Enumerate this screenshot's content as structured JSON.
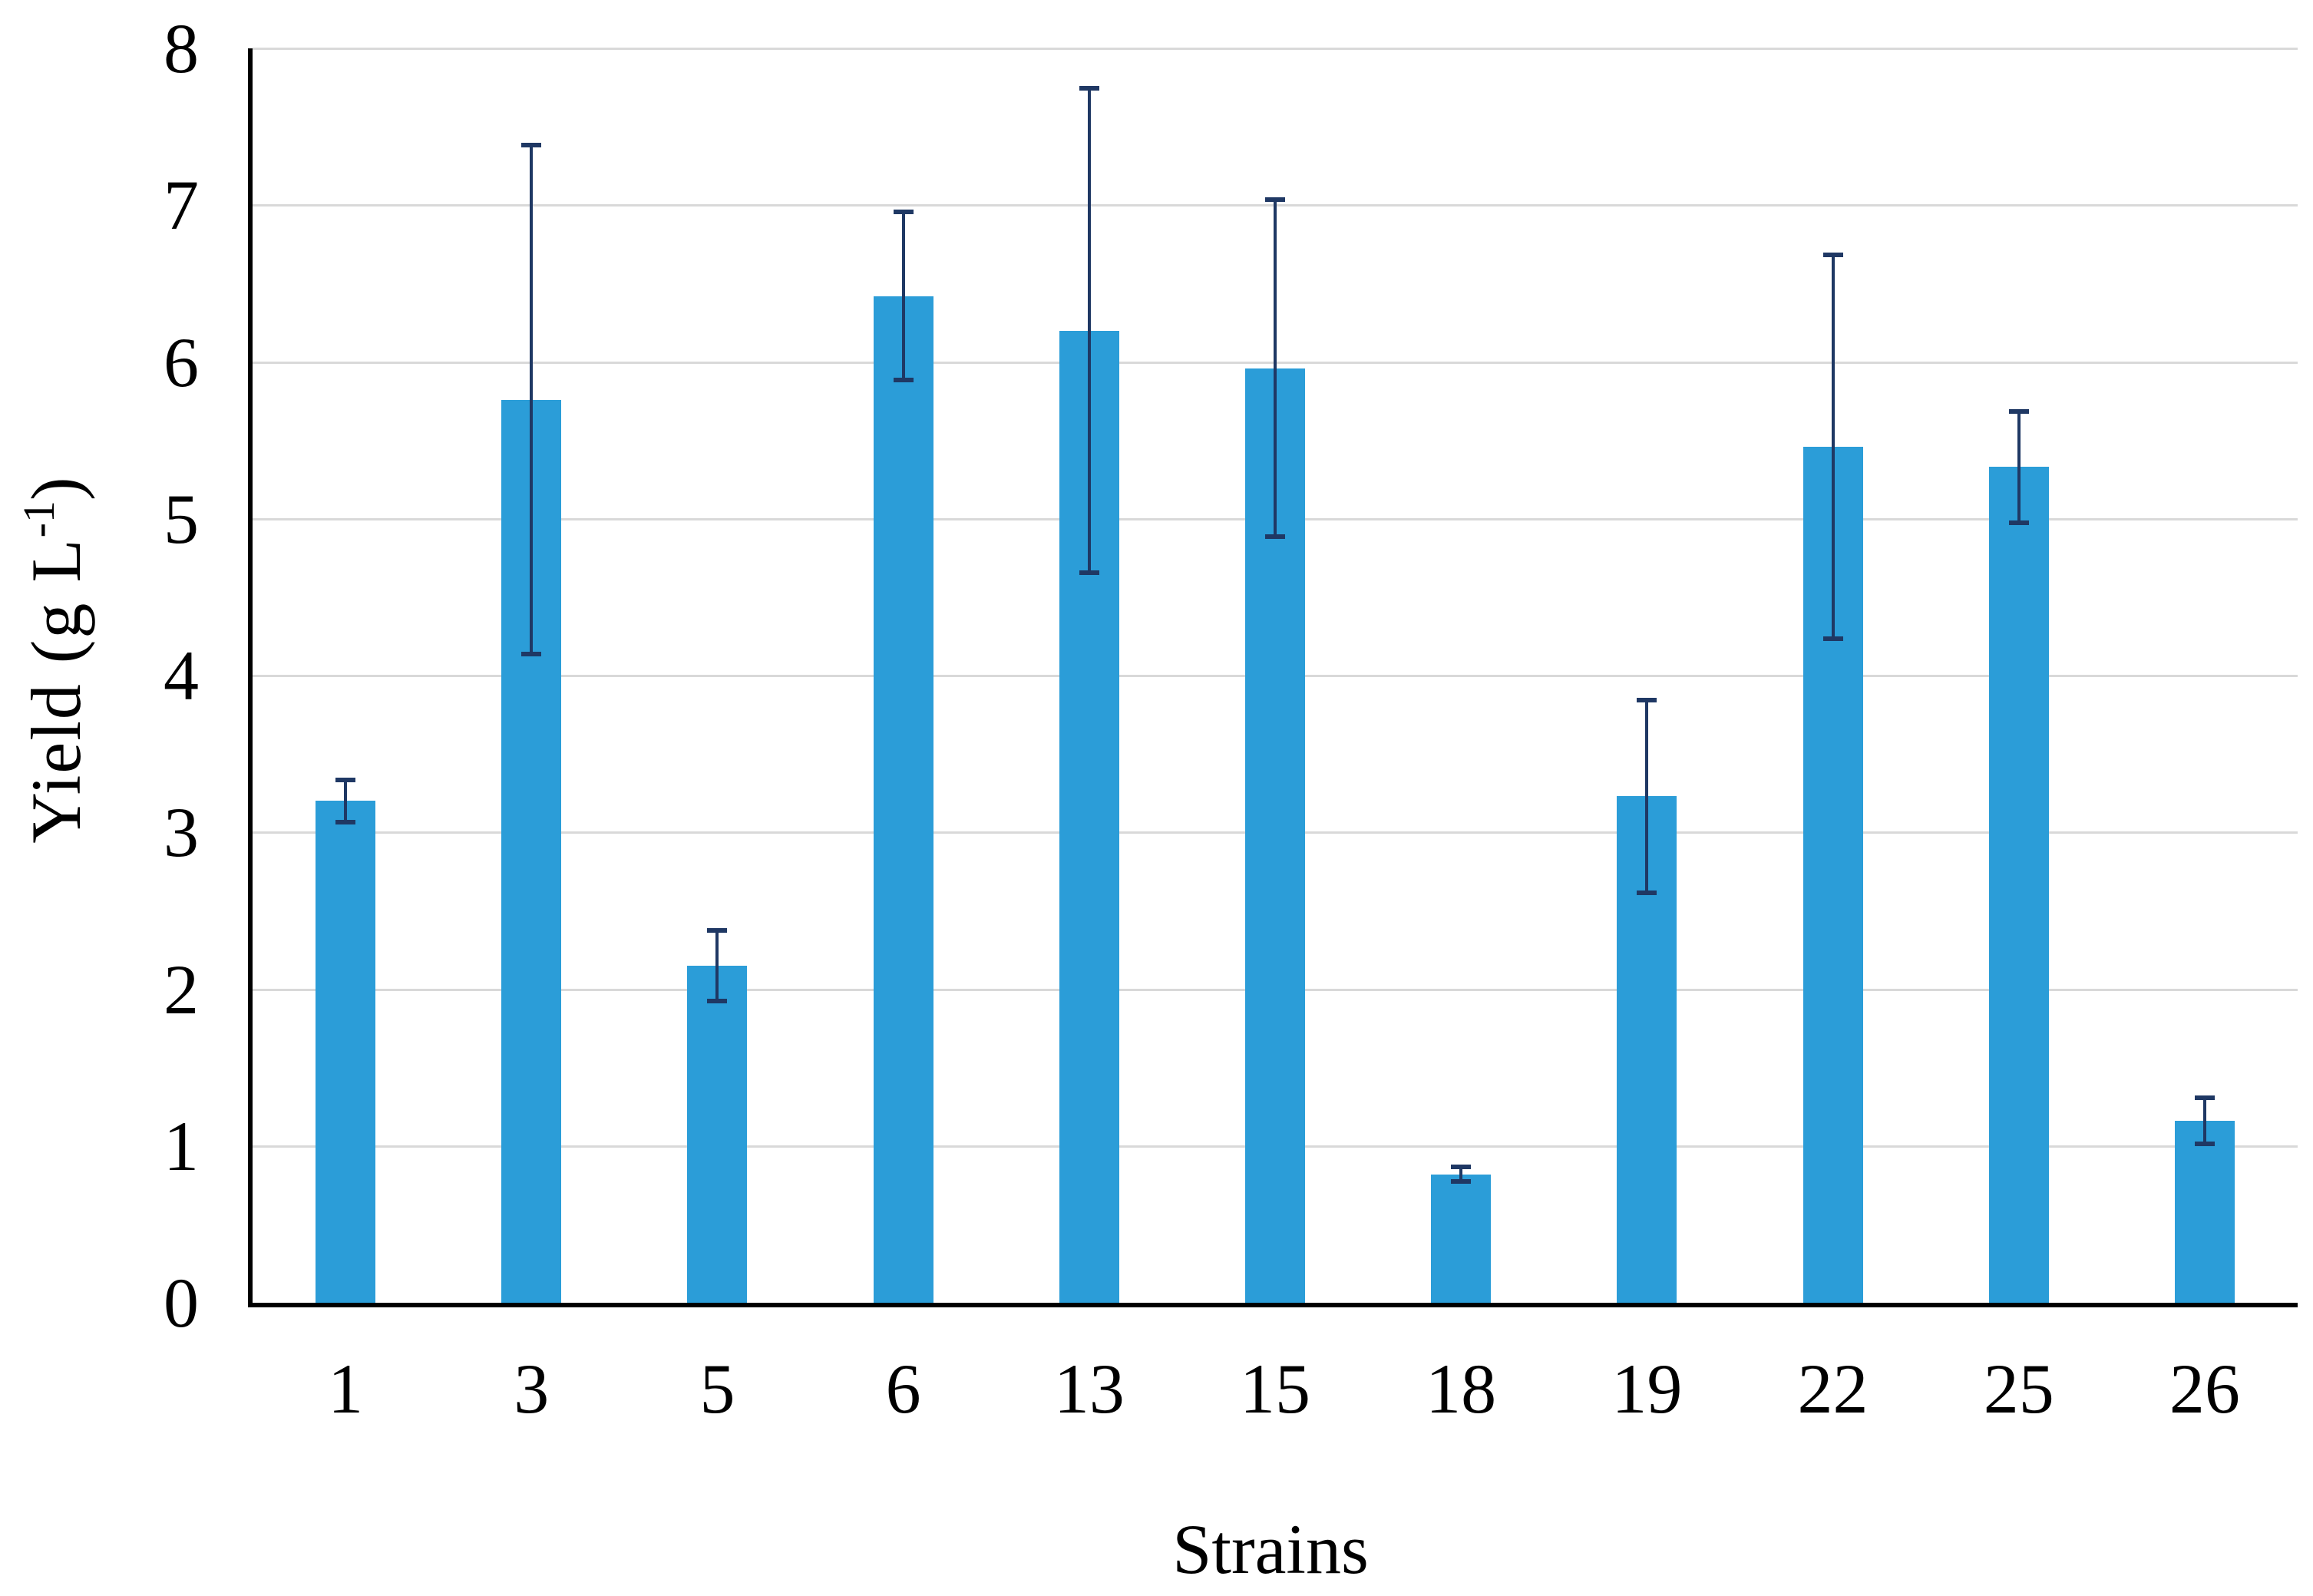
{
  "figure": {
    "background": "#ffffff"
  },
  "chart_data": {
    "type": "bar",
    "title": "",
    "xlabel": "Strains",
    "ylabel": "Yield (g L-1)",
    "ylabel_parts": {
      "prefix": "Yield  (g L",
      "superscript": "-1",
      "suffix": ")"
    },
    "categories": [
      "1",
      "3",
      "5",
      "6",
      "13",
      "15",
      "18",
      "19",
      "22",
      "25",
      "26"
    ],
    "values": [
      3.2,
      5.76,
      2.15,
      6.42,
      6.2,
      5.96,
      0.82,
      3.23,
      5.46,
      5.33,
      1.16
    ],
    "errors": [
      0.14,
      1.63,
      0.23,
      0.54,
      1.55,
      1.08,
      0.05,
      0.62,
      1.23,
      0.36,
      0.15
    ],
    "ylim": [
      0,
      8
    ],
    "y_ticks": [
      0,
      1,
      2,
      3,
      4,
      5,
      6,
      7,
      8
    ],
    "grid": true,
    "legend": false,
    "bar_color": "#2B9DD8",
    "error_color": "#1F3864",
    "gridline_color": "#D9D9D9",
    "axis_color": "#000000",
    "text_color": "#000000"
  }
}
